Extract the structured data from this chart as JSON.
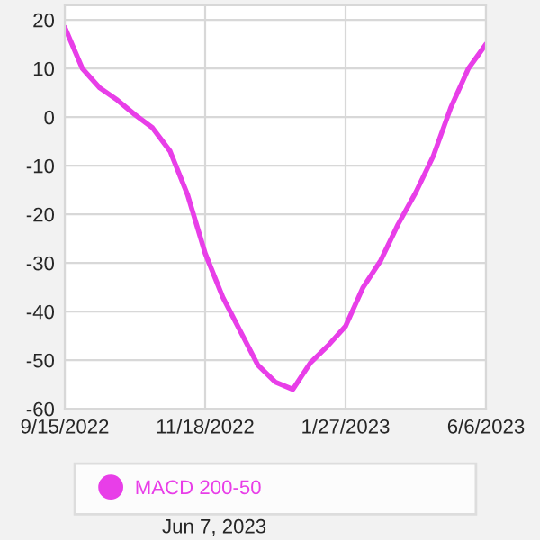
{
  "chart_data": {
    "type": "line",
    "categories": [
      "9/15/2022",
      null,
      null,
      null,
      null,
      null,
      null,
      null,
      "11/18/2022",
      null,
      null,
      null,
      null,
      null,
      null,
      null,
      "1/27/2023",
      null,
      null,
      null,
      null,
      null,
      null,
      null,
      "6/6/2023"
    ],
    "series": [
      {
        "name": "MACD 200-50",
        "color": "#e83ee8",
        "values": [
          18.5,
          10,
          6,
          3.5,
          0.5,
          -2.2,
          -7,
          -16,
          -28,
          -37,
          -44,
          -51,
          -54.5,
          -56,
          -50.5,
          -47,
          -43,
          -35,
          -29.5,
          -22,
          -15.5,
          -8,
          2,
          10,
          15
        ]
      }
    ],
    "ylim": [
      -60,
      23
    ],
    "yticks": [
      -60,
      -50,
      -40,
      -30,
      -20,
      -10,
      0,
      10,
      20
    ],
    "grid": true,
    "legend": "bottom",
    "line_style": "solid",
    "annotations": [
      "Jun 7, 2023"
    ]
  }
}
